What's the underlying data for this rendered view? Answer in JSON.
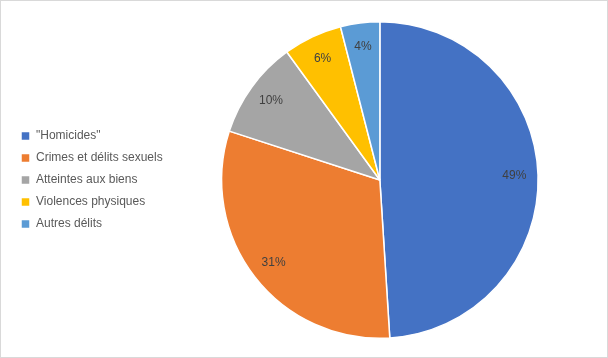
{
  "chart_data": {
    "type": "pie",
    "categories": [
      "\"Homicides\"",
      "Crimes et délits sexuels",
      "Atteintes aux biens",
      "Violences physiques",
      "Autres délits"
    ],
    "values": [
      49,
      31,
      10,
      6,
      4
    ],
    "value_labels": [
      "49%",
      "31%",
      "10%",
      "6%",
      "4%"
    ],
    "colors": [
      "#4472c4",
      "#ed7d31",
      "#a5a5a5",
      "#ffc000",
      "#5b9bd5"
    ],
    "data_labels": true,
    "legend": "left"
  }
}
